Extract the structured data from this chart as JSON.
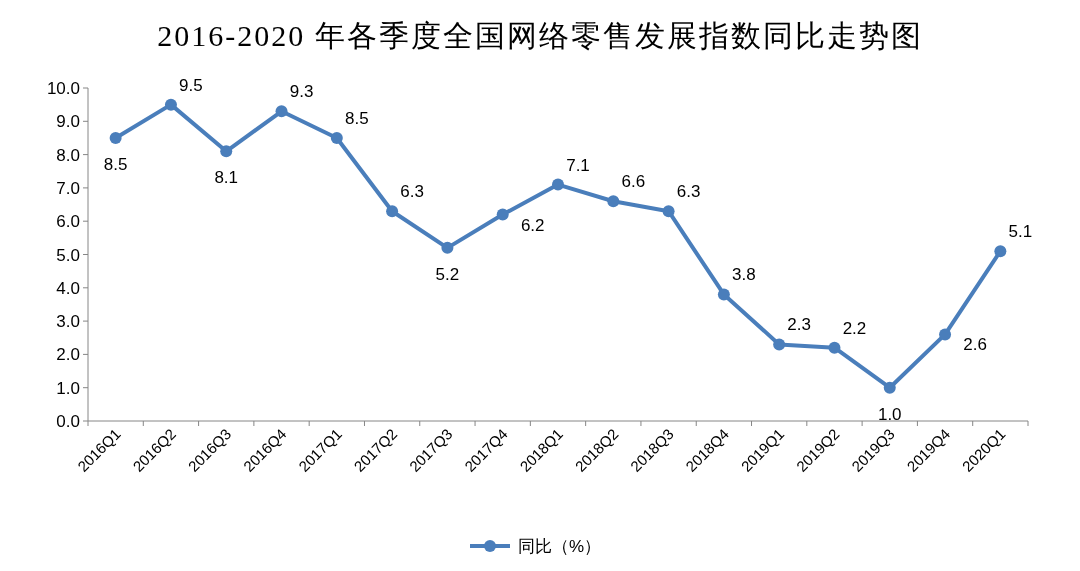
{
  "chart_data": {
    "type": "line",
    "title": "2016-2020 年各季度全国网络零售发展指数同比走势图",
    "categories": [
      "2016Q1",
      "2016Q2",
      "2016Q3",
      "2016Q4",
      "2017Q1",
      "2017Q2",
      "2017Q3",
      "2017Q4",
      "2018Q1",
      "2018Q2",
      "2018Q3",
      "2018Q4",
      "2019Q1",
      "2019Q2",
      "2019Q3",
      "2019Q4",
      "2020Q1"
    ],
    "series": [
      {
        "name": "同比（%）",
        "color": "#4a7ebb",
        "values": [
          8.5,
          9.5,
          8.1,
          9.3,
          8.5,
          6.3,
          5.2,
          6.2,
          7.1,
          6.6,
          6.3,
          3.8,
          2.3,
          2.2,
          1.0,
          2.6,
          5.1
        ]
      }
    ],
    "ylim": [
      0,
      10
    ],
    "yticks": [
      {
        "value": 0,
        "label": "0.0"
      },
      {
        "value": 1,
        "label": "1.0"
      },
      {
        "value": 2,
        "label": "2.0"
      },
      {
        "value": 3,
        "label": "3.0"
      },
      {
        "value": 4,
        "label": "4.0"
      },
      {
        "value": 5,
        "label": "5.0"
      },
      {
        "value": 6,
        "label": "6.0"
      },
      {
        "value": 7,
        "label": "7.0"
      },
      {
        "value": 8,
        "label": "8.0"
      },
      {
        "value": 9,
        "label": "9.0"
      },
      {
        "value": 10,
        "label": "10.0"
      }
    ],
    "value_labels": [
      "8.5",
      "9.5",
      "8.1",
      "9.3",
      "8.5",
      "6.3",
      "5.2",
      "6.2",
      "7.1",
      "6.6",
      "6.3",
      "3.8",
      "2.3",
      "2.2",
      "1.0",
      "2.6",
      "5.1"
    ],
    "grid": false,
    "legend": "bottom",
    "marker": "circle",
    "line_style": "solid"
  }
}
